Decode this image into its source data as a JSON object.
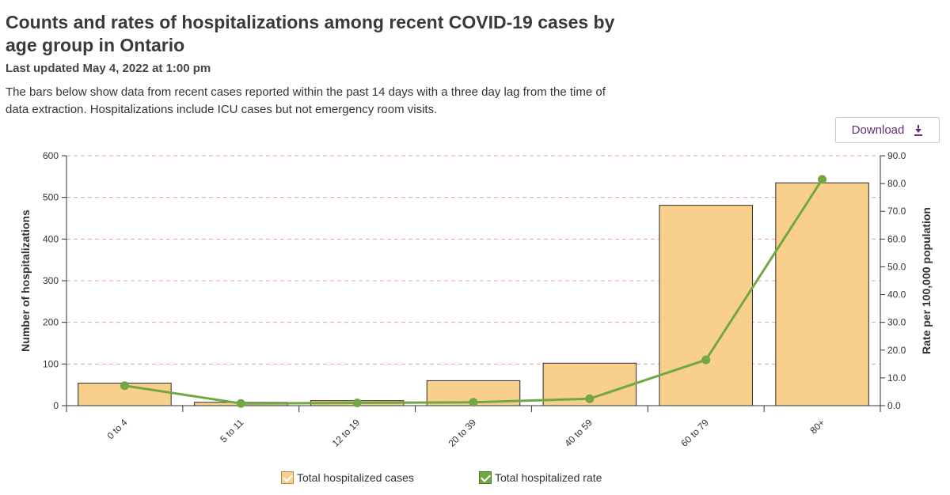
{
  "header": {
    "title": "Counts and rates of hospitalizations among recent COVID-19 cases by age group in Ontario",
    "updated": "Last updated May 4, 2022 at 1:00 pm",
    "description": "The bars below show data from recent cases reported within the past 14 days with a three day lag from the time of data extraction. Hospitalizations include ICU cases but not emergency room visits."
  },
  "toolbar": {
    "download_label": "Download",
    "download_icon": "download-icon"
  },
  "colors": {
    "bar_fill": "#f9d08b",
    "bar_stroke": "#2b2b2b",
    "line": "#72a844",
    "grid": "#e3a3a3",
    "accent": "#6b2d7a"
  },
  "chart_data": {
    "type": "bar",
    "categories": [
      "0 to 4",
      "5 to 11",
      "12 to 19",
      "20 to 39",
      "40 to 59",
      "60 to 79",
      "80+"
    ],
    "series": [
      {
        "name": "Total hospitalized cases",
        "type": "bar",
        "axis": "left",
        "values": [
          54,
          8,
          12,
          60,
          102,
          481,
          535
        ]
      },
      {
        "name": "Total hospitalized rate",
        "type": "line",
        "axis": "right",
        "values": [
          7.2,
          0.8,
          1.0,
          1.2,
          2.5,
          16.5,
          81.5
        ]
      }
    ],
    "ylabel": "Number of hospitalizations",
    "y2label": "Rate per 100,000 population",
    "ylim": [
      0,
      600
    ],
    "y2lim": [
      0,
      90
    ],
    "yticks": [
      "0",
      "100",
      "200",
      "300",
      "400",
      "500",
      "600"
    ],
    "y2ticks": [
      "0.0",
      "10.0",
      "20.0",
      "30.0",
      "40.0",
      "50.0",
      "60.0",
      "70.0",
      "80.0",
      "90.0"
    ],
    "grid": true,
    "legend": "bottom-center"
  }
}
